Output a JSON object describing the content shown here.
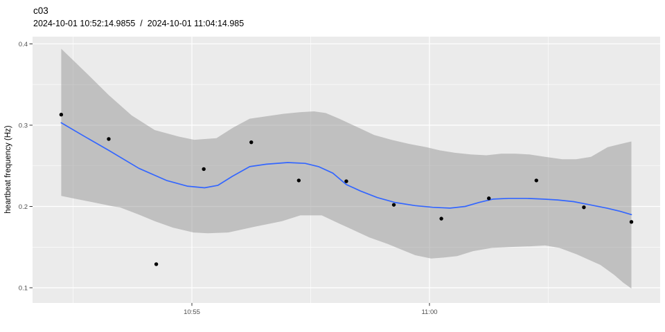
{
  "chart_data": {
    "type": "scatter",
    "title": "c03",
    "subtitle": "2024-10-01 10:52:14.9855  /  2024-10-01 11:04:14.985",
    "ylabel": "heartbeat frequency (Hz)",
    "xlabel": "",
    "points": [
      {
        "time": "10:52:15",
        "t": 39135,
        "hz": 0.313
      },
      {
        "time": "10:53:15",
        "t": 39195,
        "hz": 0.283
      },
      {
        "time": "10:54:15",
        "t": 39255,
        "hz": 0.129
      },
      {
        "time": "10:55:15",
        "t": 39315,
        "hz": 0.246
      },
      {
        "time": "10:56:15",
        "t": 39375,
        "hz": 0.279
      },
      {
        "time": "10:57:15",
        "t": 39435,
        "hz": 0.232
      },
      {
        "time": "10:58:15",
        "t": 39495,
        "hz": 0.231
      },
      {
        "time": "10:59:15",
        "t": 39555,
        "hz": 0.202
      },
      {
        "time": "11:00:15",
        "t": 39615,
        "hz": 0.185
      },
      {
        "time": "11:01:15",
        "t": 39675,
        "hz": 0.21
      },
      {
        "time": "11:02:15",
        "t": 39735,
        "hz": 0.232
      },
      {
        "time": "11:03:15",
        "t": 39795,
        "hz": 0.199
      },
      {
        "time": "11:04:15",
        "t": 39855,
        "hz": 0.181
      }
    ],
    "smooth_line": [
      [
        39135,
        0.303
      ],
      [
        39163,
        0.287
      ],
      [
        39195,
        0.269
      ],
      [
        39233,
        0.247
      ],
      [
        39268,
        0.232
      ],
      [
        39294,
        0.225
      ],
      [
        39316,
        0.223
      ],
      [
        39333,
        0.226
      ],
      [
        39351,
        0.237
      ],
      [
        39373,
        0.249
      ],
      [
        39394,
        0.252
      ],
      [
        39421,
        0.254
      ],
      [
        39443,
        0.253
      ],
      [
        39460,
        0.249
      ],
      [
        39478,
        0.241
      ],
      [
        39495,
        0.227
      ],
      [
        39513,
        0.219
      ],
      [
        39534,
        0.211
      ],
      [
        39556,
        0.205
      ],
      [
        39582,
        0.201
      ],
      [
        39604,
        0.199
      ],
      [
        39626,
        0.198
      ],
      [
        39645,
        0.2
      ],
      [
        39663,
        0.205
      ],
      [
        39680,
        0.209
      ],
      [
        39700,
        0.21
      ],
      [
        39722,
        0.21
      ],
      [
        39744,
        0.209
      ],
      [
        39762,
        0.208
      ],
      [
        39782,
        0.206
      ],
      [
        39803,
        0.202
      ],
      [
        39824,
        0.198
      ],
      [
        39841,
        0.194
      ],
      [
        39855,
        0.19
      ]
    ],
    "ribbon_upper": [
      [
        39135,
        0.394
      ],
      [
        39151,
        0.379
      ],
      [
        39169,
        0.362
      ],
      [
        39195,
        0.337
      ],
      [
        39224,
        0.312
      ],
      [
        39253,
        0.294
      ],
      [
        39283,
        0.286
      ],
      [
        39303,
        0.282
      ],
      [
        39331,
        0.284
      ],
      [
        39352,
        0.297
      ],
      [
        39373,
        0.308
      ],
      [
        39394,
        0.311
      ],
      [
        39416,
        0.314
      ],
      [
        39436,
        0.316
      ],
      [
        39454,
        0.317
      ],
      [
        39469,
        0.315
      ],
      [
        39486,
        0.308
      ],
      [
        39508,
        0.298
      ],
      [
        39530,
        0.288
      ],
      [
        39552,
        0.282
      ],
      [
        39574,
        0.277
      ],
      [
        39596,
        0.273
      ],
      [
        39613,
        0.269
      ],
      [
        39632,
        0.266
      ],
      [
        39652,
        0.264
      ],
      [
        39672,
        0.263
      ],
      [
        39691,
        0.265
      ],
      [
        39708,
        0.265
      ],
      [
        39726,
        0.264
      ],
      [
        39746,
        0.261
      ],
      [
        39768,
        0.258
      ],
      [
        39785,
        0.258
      ],
      [
        39804,
        0.261
      ],
      [
        39825,
        0.273
      ],
      [
        39842,
        0.277
      ],
      [
        39855,
        0.28
      ]
    ],
    "ribbon_lower": [
      [
        39135,
        0.213
      ],
      [
        39150,
        0.21
      ],
      [
        39171,
        0.206
      ],
      [
        39201,
        0.2
      ],
      [
        39209,
        0.199
      ],
      [
        39233,
        0.19
      ],
      [
        39253,
        0.182
      ],
      [
        39276,
        0.174
      ],
      [
        39302,
        0.168
      ],
      [
        39320,
        0.167
      ],
      [
        39346,
        0.168
      ],
      [
        39379,
        0.175
      ],
      [
        39414,
        0.182
      ],
      [
        39437,
        0.189
      ],
      [
        39464,
        0.189
      ],
      [
        39486,
        0.179
      ],
      [
        39504,
        0.171
      ],
      [
        39524,
        0.162
      ],
      [
        39547,
        0.154
      ],
      [
        39567,
        0.146
      ],
      [
        39582,
        0.14
      ],
      [
        39602,
        0.136
      ],
      [
        39617,
        0.137
      ],
      [
        39635,
        0.139
      ],
      [
        39655,
        0.145
      ],
      [
        39679,
        0.149
      ],
      [
        39699,
        0.15
      ],
      [
        39727,
        0.151
      ],
      [
        39746,
        0.152
      ],
      [
        39764,
        0.149
      ],
      [
        39786,
        0.141
      ],
      [
        39816,
        0.128
      ],
      [
        39833,
        0.116
      ],
      [
        39845,
        0.106
      ],
      [
        39851,
        0.102
      ],
      [
        39855,
        0.099
      ]
    ],
    "x_axis": {
      "major_ticks": [
        {
          "label": "10:55",
          "t": 39300
        },
        {
          "label": "11:00",
          "t": 39600
        }
      ],
      "minor_ticks": [
        39150,
        39450,
        39750
      ],
      "domain_seconds": [
        39098.8,
        39891.3
      ]
    },
    "y_axis": {
      "major_ticks": [
        {
          "label": "0.4",
          "v": 0.4
        },
        {
          "label": "0.3",
          "v": 0.3
        },
        {
          "label": "0.2",
          "v": 0.2
        },
        {
          "label": "0.1",
          "v": 0.1
        }
      ],
      "minor_ticks": [
        0.35,
        0.25,
        0.15
      ],
      "domain": [
        0.0813,
        0.4089
      ]
    },
    "legend": "none",
    "grid": "on",
    "colors": {
      "panel_bg": "#EBEBEB",
      "grid": "#FFFFFF",
      "ribbon": "#999999",
      "ribbon_opacity": 0.52,
      "line": "#3366FF",
      "point": "#000000",
      "tick_mark": "#333333",
      "axis_text": "#4D4D4D",
      "title_text": "#000000"
    }
  }
}
